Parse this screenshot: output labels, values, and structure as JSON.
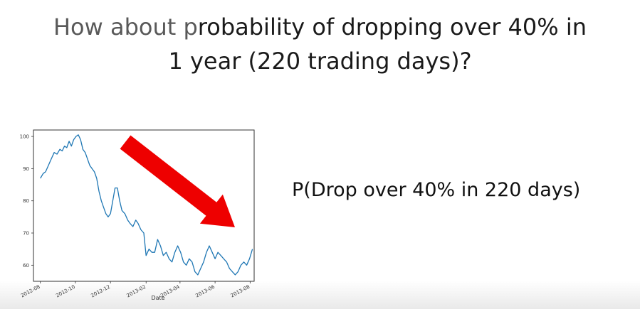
{
  "slide": {
    "title_line1_dim": "How about p",
    "title_line1_rest": "robability of dropping over 40% in",
    "title_line2": "1 year (220 trading days)?",
    "formula": "P(Drop over 40% in 220 days)"
  },
  "colors": {
    "line": "#1f77b4",
    "arrow": "#ee0000",
    "axis": "#333333"
  },
  "arrow": {
    "icon": "down-right-arrow-icon"
  },
  "chart_data": {
    "type": "line",
    "title": "",
    "xlabel": "Date",
    "ylabel": "",
    "x_range": [
      "2012-07-20",
      "2013-08-08"
    ],
    "ylim": [
      55,
      102
    ],
    "x_ticks": [
      "2012-08",
      "2012-10",
      "2012-12",
      "2013-02",
      "2013-04",
      "2013-06",
      "2013-08"
    ],
    "y_ticks": [
      60,
      70,
      80,
      90,
      100
    ],
    "grid": false,
    "legend": "none",
    "series": [
      {
        "x": [
          "2012-08-01",
          "2012-08-06",
          "2012-08-10",
          "2012-08-15",
          "2012-08-20",
          "2012-08-25",
          "2012-08-30",
          "2012-09-04",
          "2012-09-08",
          "2012-09-12",
          "2012-09-16",
          "2012-09-20",
          "2012-09-24",
          "2012-09-28",
          "2012-10-02",
          "2012-10-06",
          "2012-10-10",
          "2012-10-14",
          "2012-10-18",
          "2012-10-22",
          "2012-10-26",
          "2012-10-30",
          "2012-11-03",
          "2012-11-07",
          "2012-11-11",
          "2012-11-15",
          "2012-11-19",
          "2012-11-23",
          "2012-11-27",
          "2012-12-01",
          "2012-12-05",
          "2012-12-09",
          "2012-12-13",
          "2012-12-17",
          "2012-12-21",
          "2012-12-26",
          "2012-12-31",
          "2013-01-04",
          "2013-01-09",
          "2013-01-14",
          "2013-01-18",
          "2013-01-23",
          "2013-01-28",
          "2013-02-01",
          "2013-02-06",
          "2013-02-11",
          "2013-02-16",
          "2013-02-21",
          "2013-02-26",
          "2013-03-03",
          "2013-03-08",
          "2013-03-13",
          "2013-03-18",
          "2013-03-23",
          "2013-03-28",
          "2013-04-02",
          "2013-04-07",
          "2013-04-12",
          "2013-04-17",
          "2013-04-22",
          "2013-04-27",
          "2013-05-02",
          "2013-05-07",
          "2013-05-12",
          "2013-05-17",
          "2013-05-22",
          "2013-05-27",
          "2013-06-01",
          "2013-06-06",
          "2013-06-11",
          "2013-06-16",
          "2013-06-21",
          "2013-06-26",
          "2013-07-01",
          "2013-07-06",
          "2013-07-11",
          "2013-07-16",
          "2013-07-21",
          "2013-07-26",
          "2013-07-31",
          "2013-08-05"
        ],
        "values": [
          87,
          88.5,
          89,
          91,
          93,
          95,
          94.5,
          96,
          95.5,
          97,
          96.5,
          98.5,
          97,
          99,
          100,
          100.5,
          99,
          96,
          95,
          93,
          91,
          90,
          89,
          87,
          83,
          80,
          78,
          76,
          75,
          76,
          80,
          84,
          84,
          80,
          77,
          76,
          74,
          73,
          72,
          74,
          73,
          71,
          70,
          63,
          65,
          64,
          64,
          68,
          66,
          63,
          64,
          62,
          61,
          64,
          66,
          64,
          61,
          60,
          62,
          61,
          58,
          57,
          59,
          61,
          64,
          66,
          64,
          62,
          64,
          63,
          62,
          61,
          59,
          58,
          57,
          58,
          60,
          61,
          60,
          62,
          65
        ]
      }
    ]
  }
}
